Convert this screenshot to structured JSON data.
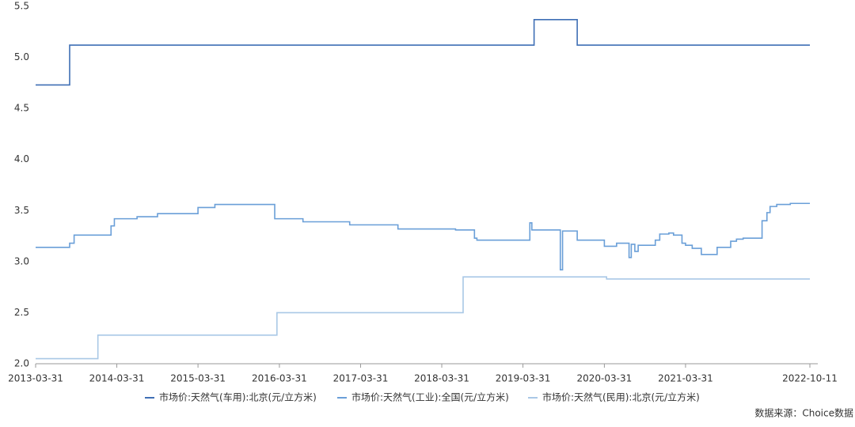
{
  "chart_data": {
    "type": "line",
    "step": "after",
    "xlim": [
      "2013-03-31",
      "2022-10-11"
    ],
    "xticks": [
      "2013-03-31",
      "2014-03-31",
      "2015-03-31",
      "2016-03-31",
      "2017-03-31",
      "2018-03-31",
      "2019-03-31",
      "2020-03-31",
      "2021-03-31",
      "2022-10-11"
    ],
    "ylim": [
      2,
      5.5
    ],
    "yticks": [
      {
        "value": 2,
        "label": "2.0"
      },
      {
        "value": 2.5,
        "label": "2.5"
      },
      {
        "value": 3,
        "label": "3.0"
      },
      {
        "value": 3.5,
        "label": "3.5"
      },
      {
        "value": 4,
        "label": "4.0"
      },
      {
        "value": 4.5,
        "label": "4.5"
      },
      {
        "value": 5,
        "label": "5.0"
      },
      {
        "value": 5.5,
        "label": "5.5"
      }
    ],
    "legend": "bottom",
    "source": "数据来源：Choice数据",
    "series": [
      {
        "name": "市场价:天然气(车用):北京(元/立方米)",
        "color": "#3f6fb5",
        "x": [
          "2013-03-31",
          "2013-08-31",
          "2019-05-20",
          "2019-11-30",
          "2022-10-11"
        ],
        "values": [
          4.73,
          5.12,
          5.37,
          5.12,
          5.12
        ]
      },
      {
        "name": "市场价:天然气(工业):全国(元/立方米)",
        "color": "#6a9fd8",
        "x": [
          "2013-03-31",
          "2013-08-31",
          "2013-09-20",
          "2014-03-05",
          "2014-03-20",
          "2014-06-30",
          "2014-09-30",
          "2015-03-31",
          "2015-06-15",
          "2016-03-10",
          "2016-07-15",
          "2017-02-10",
          "2017-09-15",
          "2018-06-01",
          "2018-08-25",
          "2018-09-05",
          "2019-05-01",
          "2019-05-10",
          "2019-09-15",
          "2019-09-25",
          "2019-11-30",
          "2020-03-31",
          "2020-05-25",
          "2020-07-20",
          "2020-07-30",
          "2020-08-15",
          "2020-08-30",
          "2020-09-10",
          "2020-11-15",
          "2020-12-05",
          "2021-01-15",
          "2021-02-05",
          "2021-03-15",
          "2021-03-31",
          "2021-04-30",
          "2021-06-10",
          "2021-08-20",
          "2021-09-05",
          "2021-10-20",
          "2021-11-15",
          "2021-12-15",
          "2022-03-10",
          "2022-04-01",
          "2022-04-15",
          "2022-05-15",
          "2022-07-15",
          "2022-09-15",
          "2022-10-11"
        ],
        "values": [
          3.14,
          3.18,
          3.26,
          3.35,
          3.42,
          3.44,
          3.47,
          3.53,
          3.56,
          3.42,
          3.39,
          3.36,
          3.32,
          3.31,
          3.23,
          3.21,
          3.38,
          3.31,
          2.92,
          3.3,
          3.21,
          3.15,
          3.18,
          3.04,
          3.17,
          3.1,
          3.16,
          3.16,
          3.21,
          3.27,
          3.28,
          3.26,
          3.18,
          3.16,
          3.13,
          3.07,
          3.14,
          3.14,
          3.2,
          3.22,
          3.23,
          3.4,
          3.48,
          3.54,
          3.56,
          3.57,
          3.57,
          3.57
        ]
      },
      {
        "name": "市场价:天然气(民用):北京(元/立方米)",
        "color": "#a9c8e6",
        "x": [
          "2013-03-31",
          "2014-01-05",
          "2016-03-20",
          "2018-07-05",
          "2020-04-10",
          "2022-10-11"
        ],
        "values": [
          2.05,
          2.28,
          2.5,
          2.85,
          2.83,
          2.83
        ]
      }
    ]
  }
}
